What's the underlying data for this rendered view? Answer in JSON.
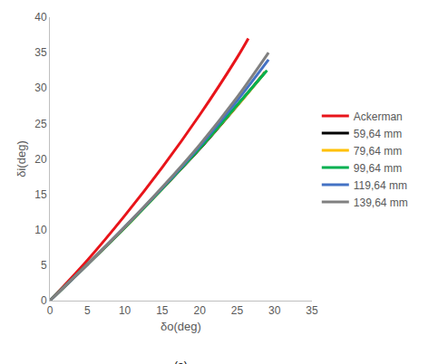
{
  "chart_data": {
    "type": "line",
    "x_label": "δo(deg)",
    "y_label": "δi(deg)",
    "caption": "(a)",
    "xlim": [
      0,
      35
    ],
    "xticks": [
      0,
      5,
      10,
      15,
      20,
      25,
      30,
      35
    ],
    "ylim": [
      0,
      40
    ],
    "yticks": [
      0,
      5,
      10,
      15,
      20,
      25,
      30,
      35,
      40
    ],
    "grid": false,
    "legend": "right",
    "series": [
      {
        "name": "Ackerman",
        "color": "#e8141a",
        "x": [
          0,
          5,
          10,
          15,
          20,
          25,
          26.5
        ],
        "values": [
          0,
          5.7,
          12,
          18.8,
          26.2,
          34.3,
          37
        ]
      },
      {
        "name": "59,64 mm",
        "color": "#000000",
        "x": [
          0,
          5,
          10,
          15,
          20,
          25,
          28.7
        ],
        "values": [
          0,
          5.1,
          10.3,
          15.8,
          21.4,
          27.5,
          32.2
        ]
      },
      {
        "name": "79,64 mm",
        "color": "#ffc000",
        "x": [
          0,
          5,
          10,
          15,
          20,
          25,
          28.8
        ],
        "values": [
          0,
          5.1,
          10.3,
          15.8,
          21.5,
          27.5,
          32.3
        ]
      },
      {
        "name": "99,64 mm",
        "color": "#00b050",
        "x": [
          0,
          5,
          10,
          15,
          20,
          25,
          29
        ],
        "values": [
          0,
          5.1,
          10.3,
          15.8,
          21.5,
          27.6,
          32.5
        ]
      },
      {
        "name": "119,64 mm",
        "color": "#4472c4",
        "x": [
          0,
          5,
          10,
          15,
          20,
          25,
          29.2
        ],
        "values": [
          0,
          5.1,
          10.4,
          15.9,
          21.8,
          28.2,
          34
        ]
      },
      {
        "name": "139,64 mm",
        "color": "#808080",
        "x": [
          0,
          5,
          10,
          15,
          20,
          25,
          29.2
        ],
        "values": [
          0,
          5.1,
          10.4,
          16,
          22,
          28.7,
          35
        ]
      }
    ]
  }
}
